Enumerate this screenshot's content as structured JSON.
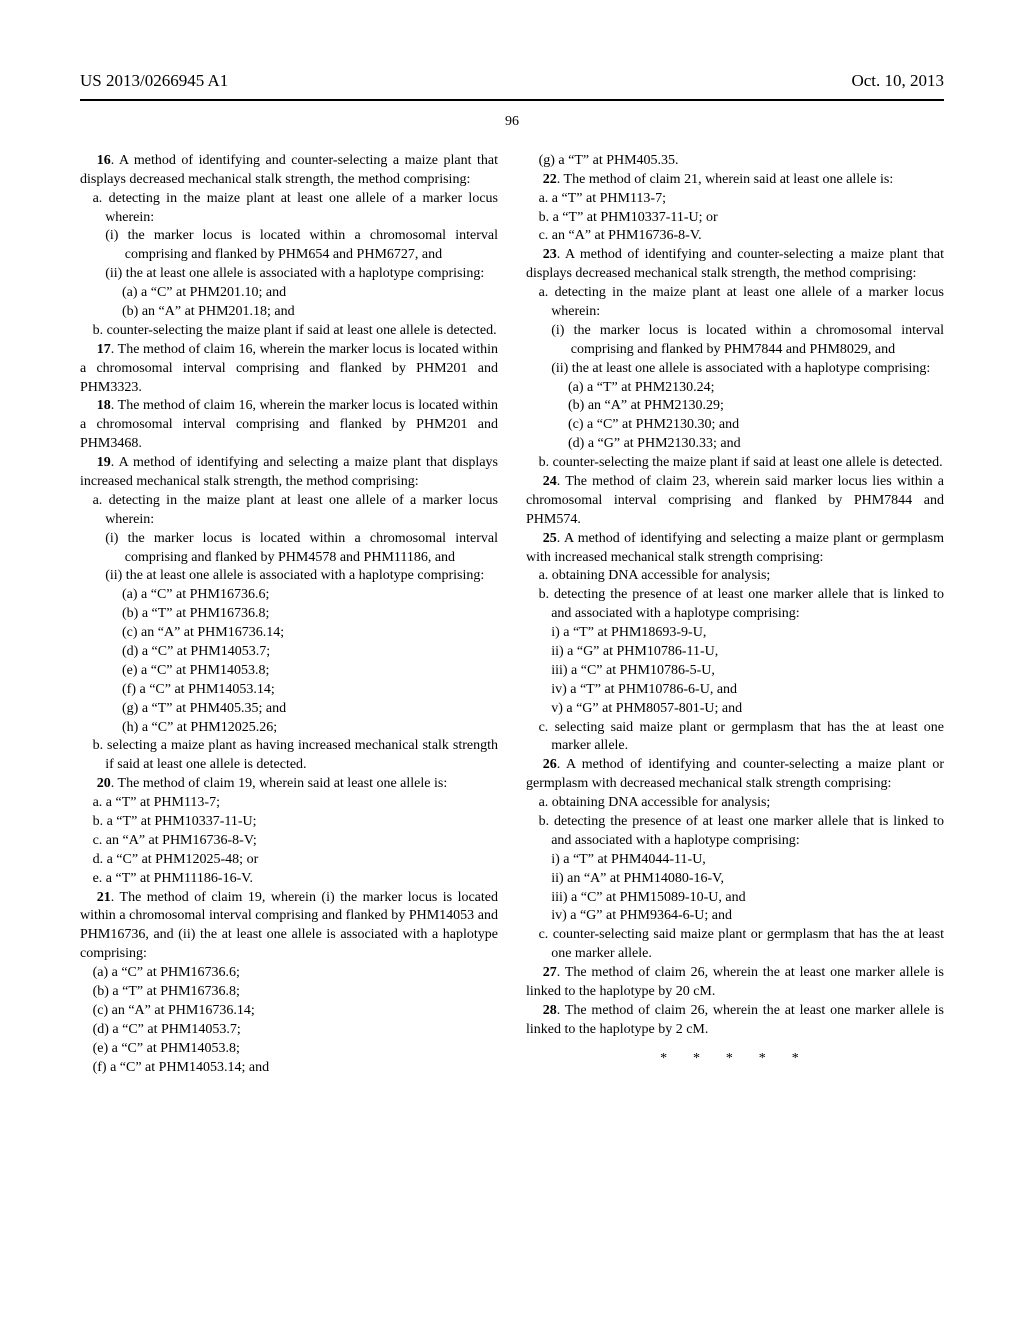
{
  "header": {
    "pubnum": "US 2013/0266945 A1",
    "date": "Oct. 10, 2013"
  },
  "page_number": "96",
  "col_left": {
    "c16_intro": "16. A method of identifying and counter-selecting a maize plant that displays decreased mechanical stalk strength, the method comprising:",
    "c16_a": "a. detecting in the maize plant at least one allele of a marker locus wherein:",
    "c16_a_i": "(i) the marker locus is located within a chromosomal interval comprising and flanked by PHM654 and PHM6727, and",
    "c16_a_ii": "(ii) the at least one allele is associated with a haplotype comprising:",
    "c16_a_ii_a": "(a) a “C” at PHM201.10; and",
    "c16_a_ii_b": "(b) an “A” at PHM201.18; and",
    "c16_b": "b. counter-selecting the maize plant if said at least one allele is detected.",
    "c17": "17. The method of claim 16, wherein the marker locus is located within a chromosomal interval comprising and flanked by PHM201 and PHM3323.",
    "c18": "18. The method of claim 16, wherein the marker locus is located within a chromosomal interval comprising and flanked by PHM201 and PHM3468.",
    "c19_intro": "19. A method of identifying and selecting a maize plant that displays increased mechanical stalk strength, the method comprising:",
    "c19_a": "a. detecting in the maize plant at least one allele of a marker locus wherein:",
    "c19_a_i": "(i) the marker locus is located within a chromosomal interval comprising and flanked by PHM4578 and PHM11186, and",
    "c19_a_ii": "(ii) the at least one allele is associated with a haplotype comprising:",
    "c19_a_ii_a": "(a) a “C” at PHM16736.6;",
    "c19_a_ii_b": "(b) a “T” at PHM16736.8;",
    "c19_a_ii_c": "(c) an “A” at PHM16736.14;",
    "c19_a_ii_d": "(d) a “C” at PHM14053.7;",
    "c19_a_ii_e": "(e) a “C” at PHM14053.8;",
    "c19_a_ii_f": "(f) a “C” at PHM14053.14;",
    "c19_a_ii_g": "(g) a “T” at PHM405.35; and",
    "c19_a_ii_h": "(h) a “C” at PHM12025.26;",
    "c19_b": "b. selecting a maize plant as having increased mechanical stalk strength if said at least one allele is detected.",
    "c20_intro": "20. The method of claim 19, wherein said at least one allele is:",
    "c20_a": "a. a “T” at PHM113-7;",
    "c20_b": "b. a “T” at PHM10337-11-U;",
    "c20_c": "c. an “A” at PHM16736-8-V;",
    "c20_d": "d. a “C” at PHM12025-48; or",
    "c20_e": "e. a “T” at PHM11186-16-V.",
    "c21_intro": "21. The method of claim 19, wherein (i) the marker locus is located within a chromosomal interval comprising and flanked by PHM14053 and PHM16736, and (ii) the at least one allele is associated with a haplotype comprising:",
    "c21_a": "(a) a “C” at PHM16736.6;",
    "c21_b": "(b) a “T” at PHM16736.8;",
    "c21_c": "(c) an “A” at PHM16736.14;",
    "c21_d": "(d) a “C” at PHM14053.7;",
    "c21_e": "(e) a “C” at PHM14053.8;"
  },
  "col_right": {
    "c21_f": "(f) a “C” at PHM14053.14; and",
    "c21_g": "(g) a “T” at PHM405.35.",
    "c22_intro": "22. The method of claim 21, wherein said at least one allele is:",
    "c22_a": "a. a “T” at PHM113-7;",
    "c22_b": "b. a “T” at PHM10337-11-U; or",
    "c22_c": "c. an “A” at PHM16736-8-V.",
    "c23_intro": "23. A method of identifying and counter-selecting a maize plant that displays decreased mechanical stalk strength, the method comprising:",
    "c23_a": "a. detecting in the maize plant at least one allele of a marker locus wherein:",
    "c23_a_i": "(i) the marker locus is located within a chromosomal interval comprising and flanked by PHM7844 and PHM8029, and",
    "c23_a_ii": "(ii) the at least one allele is associated with a haplotype comprising:",
    "c23_a_ii_a": "(a) a “T” at PHM2130.24;",
    "c23_a_ii_b": "(b) an “A” at PHM2130.29;",
    "c23_a_ii_c": "(c) a “C” at PHM2130.30; and",
    "c23_a_ii_d": "(d) a “G” at PHM2130.33; and",
    "c23_b": "b. counter-selecting the maize plant if said at least one allele is detected.",
    "c24": "24. The method of claim 23, wherein said marker locus lies within a chromosomal interval comprising and flanked by PHM7844 and PHM574.",
    "c25_intro": "25. A method of identifying and selecting a maize plant or germplasm with increased mechanical stalk strength comprising:",
    "c25_a": "a. obtaining DNA accessible for analysis;",
    "c25_b": "b. detecting the presence of at least one marker allele that is linked to and associated with a haplotype comprising:",
    "c25_b_i": "i) a “T” at PHM18693-9-U,",
    "c25_b_ii": "ii) a “G” at PHM10786-11-U,",
    "c25_b_iii": "iii) a “C” at PHM10786-5-U,",
    "c25_b_iv": "iv) a “T” at PHM10786-6-U, and",
    "c25_b_v": "v) a “G” at PHM8057-801-U; and",
    "c25_c": "c. selecting said maize plant or germplasm that has the at least one marker allele.",
    "c26_intro": "26. A method of identifying and counter-selecting a maize plant or germplasm with decreased mechanical stalk strength comprising:",
    "c26_a": "a. obtaining DNA accessible for analysis;",
    "c26_b": "b. detecting the presence of at least one marker allele that is linked to and associated with a haplotype comprising:",
    "c26_b_i": "i) a “T” at PHM4044-11-U,",
    "c26_b_ii": "ii) an “A” at PHM14080-16-V,",
    "c26_b_iii": "iii) a “C” at PHM15089-10-U, and",
    "c26_b_iv": "iv) a “G” at PHM9364-6-U; and",
    "c26_c": "c. counter-selecting said maize plant or germplasm that has the at least one marker allele.",
    "c27": "27. The method of claim 26, wherein the at least one marker allele is linked to the haplotype by 20 cM.",
    "c28": "28. The method of claim 26, wherein the at least one marker allele is linked to the haplotype by 2 cM.",
    "stars": "* * * * *"
  }
}
